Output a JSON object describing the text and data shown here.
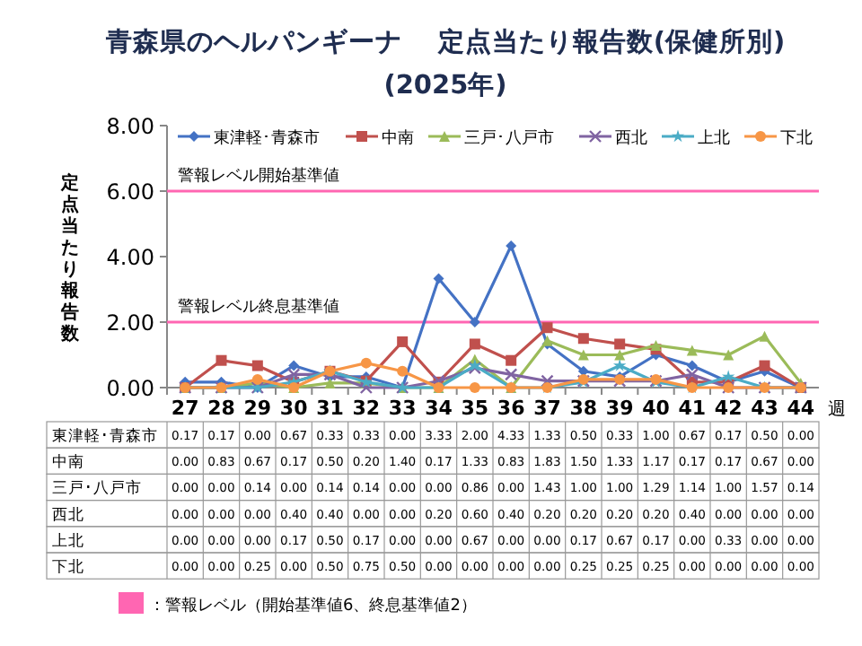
{
  "chart_data": {
    "type": "line",
    "title": "青森県のヘルパンギーナ　 定点当たり報告数(保健所別)",
    "subtitle": "(2025年)",
    "ylabel": "定点当たり報告数",
    "xlabel": "週",
    "categories": [
      "27",
      "28",
      "29",
      "30",
      "31",
      "32",
      "33",
      "34",
      "35",
      "36",
      "37",
      "38",
      "39",
      "40",
      "41",
      "42",
      "43",
      "44"
    ],
    "series": [
      {
        "name": "東津軽･青森市",
        "color": "#4472c4",
        "marker": "diamond",
        "values": [
          0.17,
          0.17,
          0.0,
          0.67,
          0.33,
          0.33,
          0.0,
          3.33,
          2.0,
          4.33,
          1.33,
          0.5,
          0.33,
          1.0,
          0.67,
          0.17,
          0.5,
          0.0
        ],
        "value_labels": [
          "0.17",
          "0.17",
          "0.00",
          "0.67",
          "0.33",
          "0.33",
          "0.00",
          "3.33",
          "2.00",
          "4.33",
          "1.33",
          "0.50",
          "0.33",
          "1.00",
          "0.67",
          "0.17",
          "0.50",
          "0.00"
        ]
      },
      {
        "name": "中南",
        "color": "#c0504d",
        "marker": "square",
        "values": [
          0.0,
          0.83,
          0.67,
          0.17,
          0.5,
          0.2,
          1.4,
          0.17,
          1.33,
          0.83,
          1.83,
          1.5,
          1.33,
          1.17,
          0.17,
          0.17,
          0.67,
          0.0
        ],
        "value_labels": [
          "0.00",
          "0.83",
          "0.67",
          "0.17",
          "0.50",
          "0.20",
          "1.40",
          "0.17",
          "1.33",
          "0.83",
          "1.83",
          "1.50",
          "1.33",
          "1.17",
          "0.17",
          "0.17",
          "0.67",
          "0.00"
        ]
      },
      {
        "name": "三戸･八戸市",
        "color": "#9bbb59",
        "marker": "triangle",
        "values": [
          0.0,
          0.0,
          0.14,
          0.0,
          0.14,
          0.14,
          0.0,
          0.0,
          0.86,
          0.0,
          1.43,
          1.0,
          1.0,
          1.29,
          1.14,
          1.0,
          1.57,
          0.14
        ],
        "value_labels": [
          "0.00",
          "0.00",
          "0.14",
          "0.00",
          "0.14",
          "0.14",
          "0.00",
          "0.00",
          "0.86",
          "0.00",
          "1.43",
          "1.00",
          "1.00",
          "1.29",
          "1.14",
          "1.00",
          "1.57",
          "0.14"
        ]
      },
      {
        "name": "西北",
        "color": "#8064a2",
        "marker": "cross",
        "values": [
          0.0,
          0.0,
          0.0,
          0.4,
          0.4,
          0.0,
          0.0,
          0.2,
          0.6,
          0.4,
          0.2,
          0.2,
          0.2,
          0.2,
          0.4,
          0.0,
          0.0,
          0.0
        ],
        "value_labels": [
          "0.00",
          "0.00",
          "0.00",
          "0.40",
          "0.40",
          "0.00",
          "0.00",
          "0.20",
          "0.60",
          "0.40",
          "0.20",
          "0.20",
          "0.20",
          "0.20",
          "0.40",
          "0.00",
          "0.00",
          "0.00"
        ]
      },
      {
        "name": "上北",
        "color": "#4bacc6",
        "marker": "star",
        "values": [
          0.0,
          0.0,
          0.0,
          0.17,
          0.5,
          0.17,
          0.0,
          0.0,
          0.67,
          0.0,
          0.0,
          0.17,
          0.67,
          0.17,
          0.0,
          0.33,
          0.0,
          0.0
        ],
        "value_labels": [
          "0.00",
          "0.00",
          "0.00",
          "0.17",
          "0.50",
          "0.17",
          "0.00",
          "0.00",
          "0.67",
          "0.00",
          "0.00",
          "0.17",
          "0.67",
          "0.17",
          "0.00",
          "0.33",
          "0.00",
          "0.00"
        ]
      },
      {
        "name": "下北",
        "color": "#f79646",
        "marker": "circle",
        "values": [
          0.0,
          0.0,
          0.25,
          0.0,
          0.5,
          0.75,
          0.5,
          0.0,
          0.0,
          0.0,
          0.0,
          0.25,
          0.25,
          0.25,
          0.0,
          0.0,
          0.0,
          0.0
        ],
        "value_labels": [
          "0.00",
          "0.00",
          "0.25",
          "0.00",
          "0.50",
          "0.75",
          "0.50",
          "0.00",
          "0.00",
          "0.00",
          "0.00",
          "0.25",
          "0.25",
          "0.25",
          "0.00",
          "0.00",
          "0.00",
          "0.00"
        ]
      }
    ],
    "ylim": [
      0,
      8
    ],
    "yticks": [
      {
        "value": 0,
        "label": "0.00"
      },
      {
        "value": 2,
        "label": "2.00"
      },
      {
        "value": 4,
        "label": "4.00"
      },
      {
        "value": 6,
        "label": "6.00"
      },
      {
        "value": 8,
        "label": "8.00"
      }
    ],
    "ref_lines": [
      {
        "axis": "y",
        "value": 6,
        "label": "警報レベル開始基準値",
        "color": "#ff66b2"
      },
      {
        "axis": "y",
        "value": 2,
        "label": "警報レベル終息基準値",
        "color": "#ff66b2"
      }
    ],
    "legend": "top",
    "annotations": [
      "：警報レベル（開始基準値6、終息基準値2）"
    ]
  }
}
